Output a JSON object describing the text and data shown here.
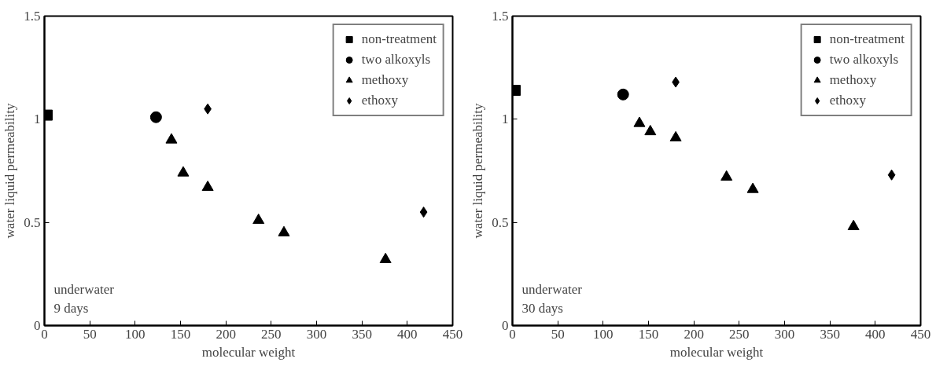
{
  "chart_data": [
    {
      "type": "scatter",
      "xlabel": "molecular weight",
      "ylabel": "water liquid permeability",
      "xlim": [
        0,
        450
      ],
      "ylim": [
        0,
        1.5
      ],
      "xticks": [
        0,
        50,
        100,
        150,
        200,
        250,
        300,
        350,
        400,
        450
      ],
      "yticks": [
        0,
        0.5,
        1,
        1.5
      ],
      "grid": false,
      "legend": "top right",
      "annotations": [
        "underwater\n9 days"
      ],
      "series": [
        {
          "name": "non-treatment",
          "color": "#000000",
          "marker": "square",
          "x": [
            3
          ],
          "values": [
            1.02
          ]
        },
        {
          "name": "two alkoxyls",
          "color": "#000000",
          "marker": "circle",
          "x": [
            123
          ],
          "values": [
            1.01
          ]
        },
        {
          "name": "methoxy",
          "color": "#000000",
          "marker": "triangle",
          "x": [
            140,
            153,
            180,
            236,
            264,
            376
          ],
          "values": [
            0.9,
            0.74,
            0.67,
            0.51,
            0.45,
            0.32
          ]
        },
        {
          "name": "ethoxy",
          "color": "#000000",
          "marker": "diamond",
          "x": [
            180,
            418
          ],
          "values": [
            1.05,
            0.55
          ]
        }
      ]
    },
    {
      "type": "scatter",
      "xlabel": "molecular weight",
      "ylabel": "water liquid permeability",
      "xlim": [
        0,
        450
      ],
      "ylim": [
        0,
        1.5
      ],
      "xticks": [
        0,
        50,
        100,
        150,
        200,
        250,
        300,
        350,
        400,
        450
      ],
      "yticks": [
        0,
        0.5,
        1,
        1.5
      ],
      "grid": false,
      "legend": "top right",
      "annotations": [
        "underwater\n30 days"
      ],
      "series": [
        {
          "name": "non-treatment",
          "color": "#000000",
          "marker": "square",
          "x": [
            3
          ],
          "values": [
            1.14
          ]
        },
        {
          "name": "two alkoxyls",
          "color": "#000000",
          "marker": "circle",
          "x": [
            122
          ],
          "values": [
            1.12
          ]
        },
        {
          "name": "methoxy",
          "color": "#000000",
          "marker": "triangle",
          "x": [
            140,
            152,
            180,
            236,
            265,
            376
          ],
          "values": [
            0.98,
            0.94,
            0.91,
            0.72,
            0.66,
            0.48
          ]
        },
        {
          "name": "ethoxy",
          "color": "#000000",
          "marker": "diamond",
          "x": [
            180,
            418
          ],
          "values": [
            1.18,
            0.73
          ]
        }
      ]
    }
  ]
}
